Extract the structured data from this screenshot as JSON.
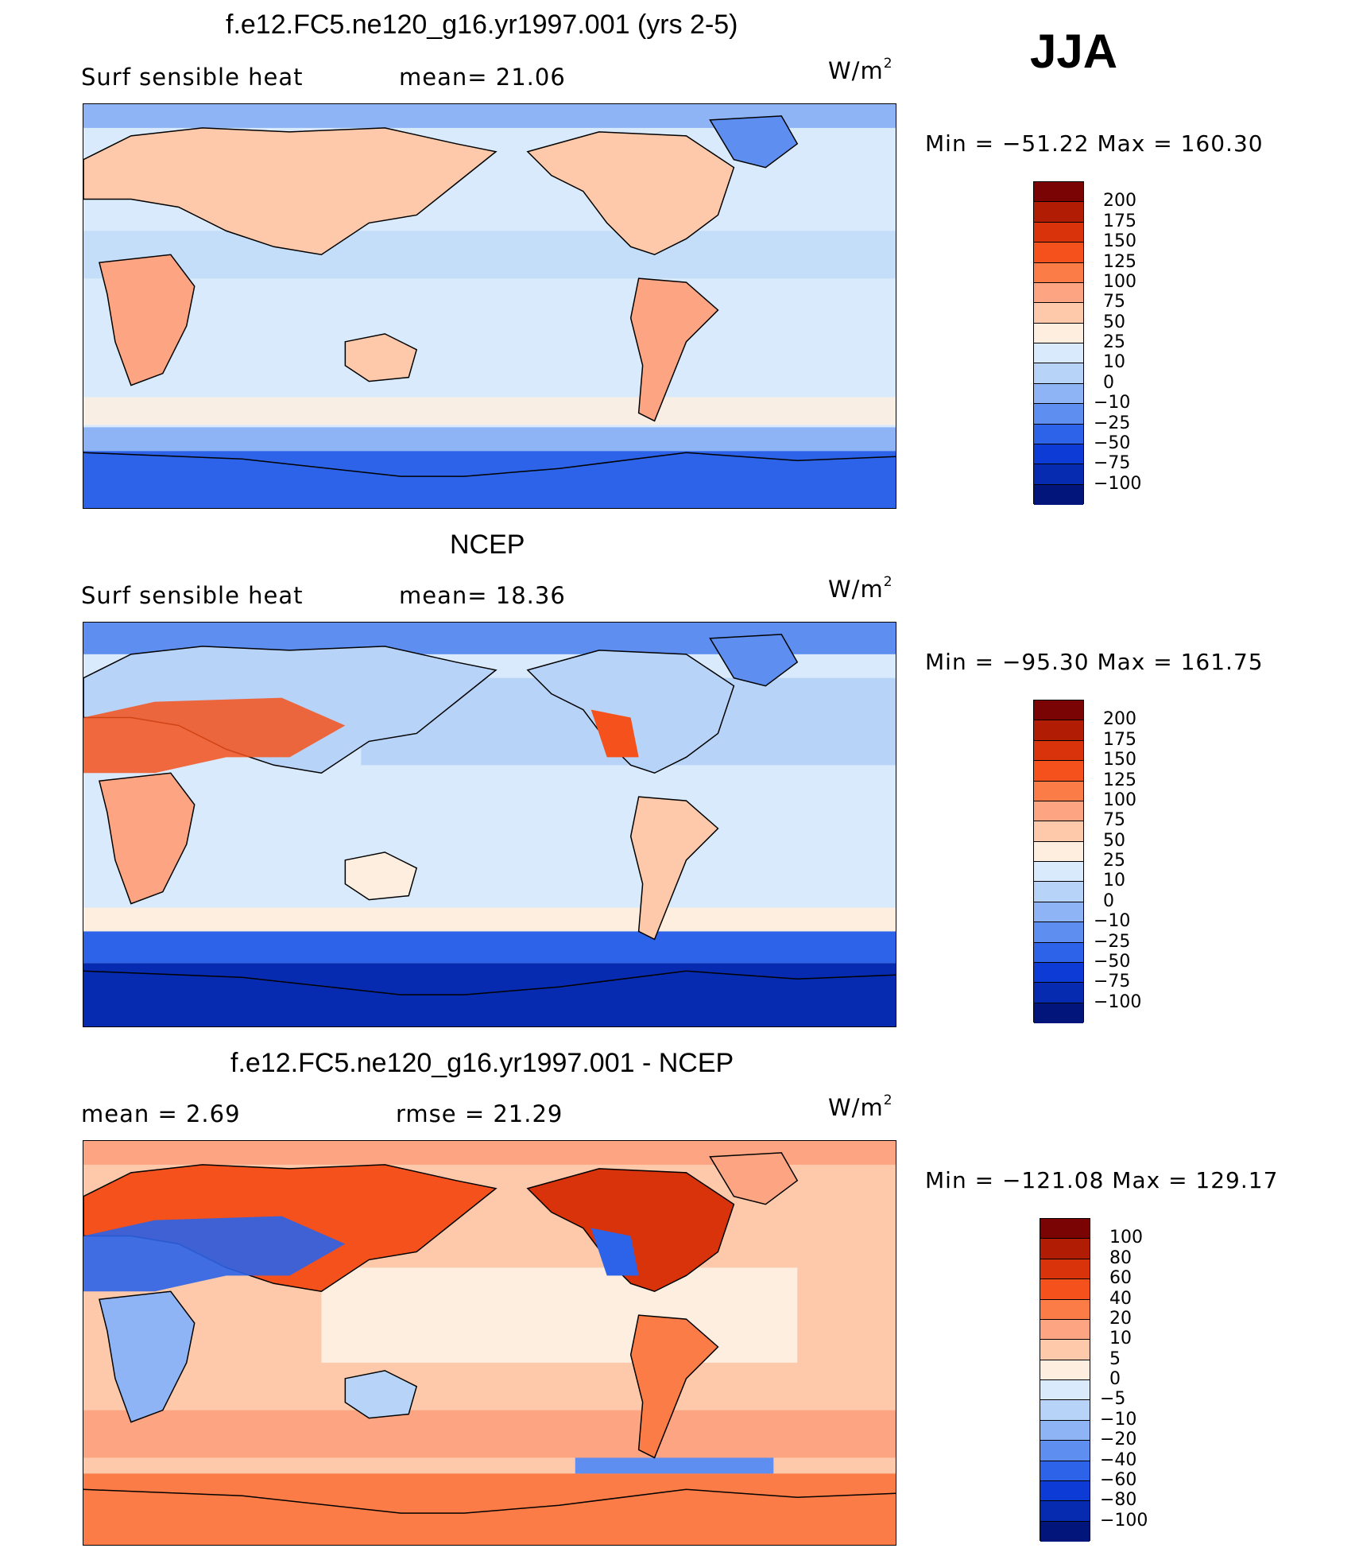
{
  "season": "JJA",
  "units_text": "W/m",
  "units_exp": "2",
  "panels": [
    {
      "title": "f.e12.FC5.ne120_g16.yr1997.001 (yrs 2-5)",
      "left_label": "Surf  sensible  heat",
      "stat_label": "mean=  21.06",
      "minmax": "Min  =  −51.22  Max  =  160.30"
    },
    {
      "title": "NCEP",
      "left_label": "Surf  sensible  heat",
      "stat_label": "mean=  18.36",
      "minmax": "Min  =  −95.30  Max  =  161.75"
    },
    {
      "title": "f.e12.FC5.ne120_g16.yr1997.001 - NCEP",
      "left_label": "mean  =      2.69",
      "stat_label": "rmse  =    21.29",
      "minmax": "Min  =  −121.08  Max  =  129.17"
    }
  ],
  "colorbars": [
    {
      "labels": [
        "200",
        "175",
        "150",
        "125",
        "100",
        "75",
        "50",
        "25",
        "10",
        "0",
        "−10",
        "−25",
        "−50",
        "−75",
        "−100"
      ],
      "colors": [
        "#7a0403",
        "#b01c04",
        "#d8330a",
        "#f4511c",
        "#fb7c47",
        "#fda482",
        "#fdc9aa",
        "#fdeee0",
        "#d8eafb",
        "#b7d4f8",
        "#8eb4f5",
        "#5d8ef0",
        "#2c63e8",
        "#0c3bd6",
        "#062bb0",
        "#01157a"
      ]
    },
    {
      "labels": [
        "200",
        "175",
        "150",
        "125",
        "100",
        "75",
        "50",
        "25",
        "10",
        "0",
        "−10",
        "−25",
        "−50",
        "−75",
        "−100"
      ],
      "colors": [
        "#7a0403",
        "#b01c04",
        "#d8330a",
        "#f4511c",
        "#fb7c47",
        "#fda482",
        "#fdc9aa",
        "#fdeee0",
        "#d8eafb",
        "#b7d4f8",
        "#8eb4f5",
        "#5d8ef0",
        "#2c63e8",
        "#0c3bd6",
        "#062bb0",
        "#01157a"
      ]
    },
    {
      "labels": [
        "100",
        "80",
        "60",
        "40",
        "20",
        "10",
        "5",
        "0",
        "−5",
        "−10",
        "−20",
        "−40",
        "−60",
        "−80",
        "−100"
      ],
      "colors": [
        "#7a0403",
        "#b01c04",
        "#d8330a",
        "#f4511c",
        "#fb7c47",
        "#fda482",
        "#fdc9aa",
        "#fdeee0",
        "#d8eafb",
        "#b7d4f8",
        "#8eb4f5",
        "#5d8ef0",
        "#2c63e8",
        "#0c3bd6",
        "#062bb0",
        "#01157a"
      ]
    }
  ],
  "chart_data": [
    {
      "type": "heatmap",
      "title": "f.e12.FC5.ne120_g16.yr1997.001 (yrs 2-5)",
      "subtitle": "Surf  sensible  heat",
      "units": "W/m2",
      "mean": 21.06,
      "min": -51.22,
      "max": 160.3,
      "contour_levels": [
        -100,
        -75,
        -50,
        -25,
        -10,
        0,
        10,
        25,
        50,
        75,
        100,
        125,
        150,
        175,
        200
      ]
    },
    {
      "type": "heatmap",
      "title": "NCEP",
      "subtitle": "Surf  sensible  heat",
      "units": "W/m2",
      "mean": 18.36,
      "min": -95.3,
      "max": 161.75,
      "contour_levels": [
        -100,
        -75,
        -50,
        -25,
        -10,
        0,
        10,
        25,
        50,
        75,
        100,
        125,
        150,
        175,
        200
      ]
    },
    {
      "type": "heatmap",
      "title": "f.e12.FC5.ne120_g16.yr1997.001 - NCEP",
      "units": "W/m2",
      "mean": 2.69,
      "rmse": 21.29,
      "min": -121.08,
      "max": 129.17,
      "contour_levels": [
        -100,
        -80,
        -60,
        -40,
        -20,
        -10,
        -5,
        0,
        5,
        10,
        20,
        40,
        60,
        80,
        100
      ]
    }
  ]
}
